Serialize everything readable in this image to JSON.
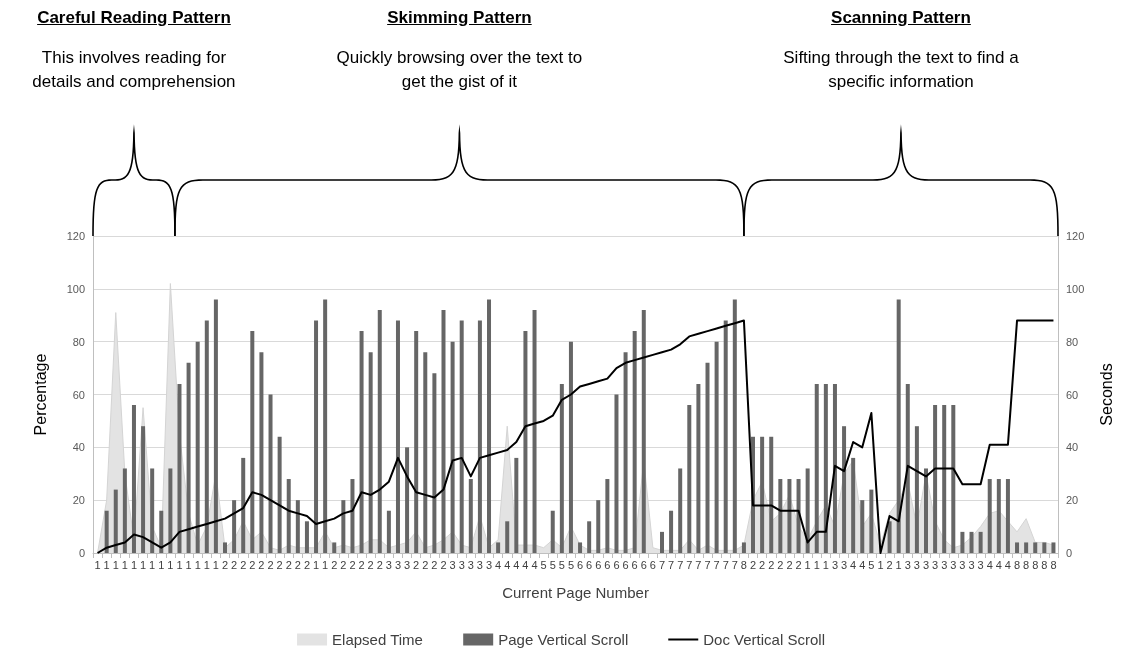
{
  "chart_data": {
    "type": "bar",
    "xlabel": "Current Page Number",
    "ylabel": "Percentage",
    "y2label": "Seconds",
    "annotations": [
      "Careful Reading Pattern",
      "This involves reading for details and comprehension",
      "Skimming Pattern",
      "Quickly browsing over the text to get the gist of it",
      "Scanning Pattern",
      "Sifting through the text to find a specific information"
    ],
    "categories": [
      "1",
      "1",
      "1",
      "1",
      "1",
      "1",
      "1",
      "1",
      "1",
      "1",
      "1",
      "1",
      "1",
      "1",
      "2",
      "2",
      "2",
      "2",
      "2",
      "2",
      "2",
      "2",
      "2",
      "2",
      "1",
      "1",
      "2",
      "2",
      "2",
      "2",
      "2",
      "2",
      "3",
      "3",
      "3",
      "2",
      "2",
      "2",
      "2",
      "3",
      "3",
      "3",
      "3",
      "3",
      "4",
      "4",
      "4",
      "4",
      "4",
      "5",
      "5",
      "5",
      "5",
      "6",
      "6",
      "6",
      "6",
      "6",
      "6",
      "6",
      "6",
      "6",
      "7",
      "7",
      "7",
      "7",
      "7",
      "7",
      "7",
      "7",
      "7",
      "8",
      "2",
      "2",
      "2",
      "2",
      "2",
      "2",
      "1",
      "1",
      "1",
      "3",
      "3",
      "4",
      "4",
      "5",
      "1",
      "2",
      "1",
      "3",
      "3",
      "3",
      "3",
      "3",
      "3",
      "3",
      "3",
      "3",
      "4",
      "4",
      "4",
      "8",
      "8",
      "8",
      "8",
      "8"
    ],
    "ylim": [
      0,
      120
    ],
    "yticks": [
      0,
      20,
      40,
      60,
      80,
      100,
      120
    ],
    "y2lim": [
      0,
      120
    ],
    "y2ticks": [
      0,
      20,
      40,
      60,
      80,
      100,
      120
    ],
    "grid": "y",
    "legend": "bottom",
    "marker": "none",
    "series": [
      {
        "name": "Elapsed Time",
        "type": "area",
        "color": "#e3e3e3",
        "values": [
          0,
          20,
          91,
          30,
          5,
          55,
          10,
          2,
          102,
          45,
          15,
          3,
          10,
          30,
          2,
          5,
          12,
          5,
          8,
          2,
          1,
          3,
          2,
          2,
          2,
          8,
          2,
          3,
          2,
          3,
          5,
          5,
          2,
          3,
          4,
          8,
          2,
          3,
          5,
          8,
          3,
          2,
          14,
          2,
          5,
          48,
          3,
          3,
          3,
          2,
          5,
          2,
          10,
          3,
          1,
          1,
          2,
          1,
          1,
          2,
          35,
          2,
          1,
          1,
          1,
          5,
          1,
          3,
          1,
          1,
          1,
          3,
          20,
          27,
          12,
          15,
          22,
          10,
          5,
          12,
          18,
          10,
          30,
          35,
          10,
          15,
          3,
          15,
          20,
          27,
          10,
          30,
          12,
          5,
          2,
          3,
          6,
          10,
          15,
          16,
          12,
          8,
          13,
          4,
          4,
          3
        ]
      },
      {
        "name": "Page Vertical Scroll",
        "color": "#666666",
        "values": [
          0,
          16,
          24,
          32,
          56,
          48,
          32,
          16,
          32,
          64,
          72,
          80,
          88,
          96,
          4,
          20,
          36,
          84,
          76,
          60,
          44,
          28,
          20,
          12,
          88,
          96,
          4,
          20,
          28,
          84,
          76,
          92,
          16,
          88,
          40,
          84,
          76,
          68,
          92,
          80,
          88,
          28,
          88,
          96,
          4,
          12,
          36,
          84,
          92,
          0,
          16,
          64,
          80,
          4,
          12,
          20,
          28,
          60,
          76,
          84,
          92,
          0,
          8,
          16,
          32,
          56,
          64,
          72,
          80,
          88,
          96,
          4,
          44,
          44,
          44,
          28,
          28,
          28,
          32,
          64,
          64,
          64,
          48,
          36,
          20,
          24,
          0,
          12,
          96,
          64,
          48,
          32,
          56,
          56,
          56,
          8,
          8,
          8,
          28,
          28,
          28,
          4,
          4,
          4,
          4,
          4
        ]
      },
      {
        "name": "Doc Vertical Scroll",
        "type": "line",
        "color": "#000000",
        "line_style": "solid",
        "values": [
          0,
          2,
          3,
          4,
          7,
          6,
          4,
          2,
          4,
          8,
          9,
          10,
          11,
          12,
          13,
          15,
          17,
          23,
          22,
          20,
          18,
          16,
          15,
          14,
          11,
          12,
          13,
          15,
          16,
          23,
          22,
          24,
          27,
          36,
          29,
          23,
          22,
          21,
          24,
          35,
          36,
          29,
          36,
          37,
          38,
          39,
          42,
          48,
          49,
          50,
          52,
          58,
          60,
          63,
          64,
          65,
          66,
          70,
          72,
          73,
          74,
          75,
          76,
          77,
          79,
          82,
          83,
          84,
          85,
          86,
          87,
          88,
          18,
          18,
          18,
          16,
          16,
          16,
          4,
          8,
          8,
          33,
          31,
          42,
          40,
          53,
          0,
          14,
          12,
          33,
          31,
          29,
          32,
          32,
          32,
          26,
          26,
          26,
          41,
          41,
          41,
          88,
          88,
          88,
          88,
          88
        ]
      }
    ]
  }
}
